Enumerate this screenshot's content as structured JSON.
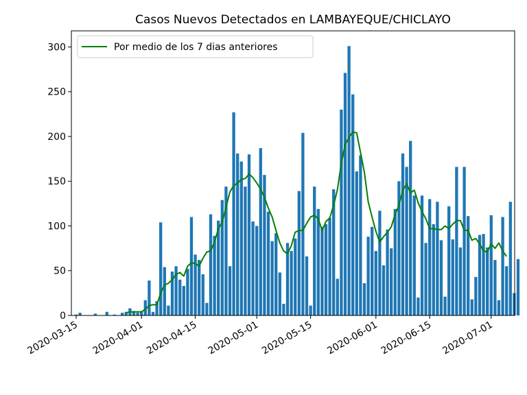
{
  "chart_data": {
    "type": "bar",
    "title": "Casos Nuevos Detectados en LAMBAYEQUE/CHICLAYO",
    "xlabel": "",
    "ylabel": "",
    "x_start": "2020-03-15",
    "x_ticks": [
      "2020-03-15",
      "2020-04-01",
      "2020-04-15",
      "2020-05-01",
      "2020-05-15",
      "2020-06-01",
      "2020-06-15",
      "2020-07-01"
    ],
    "ylim": [
      0,
      318
    ],
    "y_ticks": [
      0,
      50,
      100,
      150,
      200,
      250,
      300
    ],
    "grid": false,
    "legend_position": "top-left",
    "colors": {
      "bars": "#1f77b4",
      "line": "#008000"
    },
    "series": [
      {
        "type": "bar",
        "values": [
          1,
          3,
          0,
          0,
          0,
          2,
          0,
          0,
          4,
          0,
          1,
          0,
          3,
          4,
          8,
          5,
          3,
          5,
          17,
          39,
          4,
          16,
          104,
          54,
          11,
          49,
          55,
          40,
          33,
          52,
          110,
          68,
          62,
          46,
          14,
          113,
          89,
          106,
          129,
          144,
          55,
          227,
          181,
          172,
          144,
          180,
          105,
          100,
          187,
          157,
          116,
          83,
          92,
          48,
          13,
          81,
          72,
          86,
          139,
          204,
          66,
          11,
          144,
          119,
          99,
          102,
          109,
          141,
          41,
          230,
          271,
          301,
          247,
          161,
          179,
          36,
          88,
          99,
          72,
          117,
          56,
          96,
          75,
          119,
          150,
          181,
          166,
          195,
          134,
          20,
          134,
          81,
          130,
          102,
          127,
          84,
          21,
          122,
          85,
          166,
          76,
          166,
          111,
          18,
          43,
          90,
          91,
          76,
          112,
          62,
          17,
          110,
          55,
          127,
          25,
          63
        ]
      },
      {
        "type": "line",
        "name": "Por medio de los 7 dias anteriores",
        "start_index": 13,
        "values": [
          3,
          4,
          4,
          4,
          4,
          7,
          11,
          12,
          12,
          25,
          34,
          36,
          40,
          46,
          48,
          44,
          55,
          59,
          58,
          55,
          64,
          71,
          72,
          82,
          97,
          104,
          121,
          138,
          145,
          148,
          152,
          153,
          158,
          154,
          148,
          141,
          132,
          120,
          110,
          95,
          81,
          72,
          69,
          78,
          93,
          95,
          95,
          103,
          110,
          112,
          108,
          95,
          105,
          109,
          123,
          141,
          170,
          191,
          199,
          205,
          204,
          182,
          160,
          127,
          110,
          94,
          82,
          88,
          93,
          99,
          113,
          123,
          140,
          147,
          137,
          140,
          126,
          116,
          108,
          97,
          97,
          96,
          96,
          100,
          97,
          102,
          106,
          106,
          95,
          95,
          84,
          86,
          80,
          72,
          71,
          80,
          75,
          81,
          72,
          66
        ]
      }
    ]
  }
}
